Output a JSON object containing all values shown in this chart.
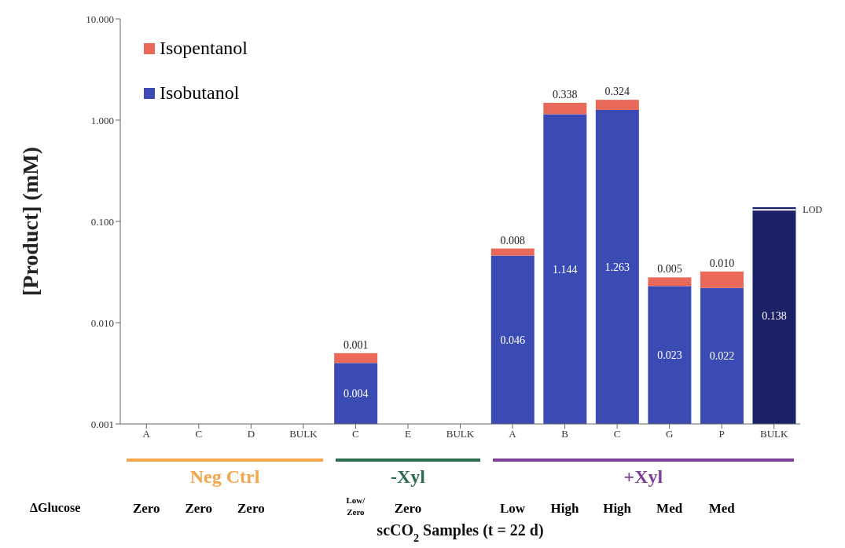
{
  "chart_data": {
    "type": "bar",
    "stacked": true,
    "ylabel": "[Product] (mM)",
    "categories": [
      "A",
      "C",
      "D",
      "BULK",
      "C",
      "E",
      "BULK",
      "A",
      "B",
      "C",
      "G",
      "P",
      "BULK"
    ],
    "series": [
      {
        "name": "Isobutanol",
        "color": "#3a4bb3",
        "colors": [
          null,
          null,
          null,
          null,
          "#3a4bb3",
          null,
          null,
          "#3a4bb3",
          "#3a4bb3",
          "#3a4bb3",
          "#3a4bb3",
          "#3a4bb3",
          "#1b2166"
        ],
        "values": [
          null,
          null,
          null,
          null,
          0.004,
          null,
          null,
          0.046,
          1.144,
          1.263,
          0.023,
          0.022,
          0.138
        ],
        "value_labels": [
          null,
          null,
          null,
          null,
          "0.004",
          null,
          null,
          "0.046",
          "1.144",
          "1.263",
          "0.023",
          "0.022",
          "0.138"
        ]
      },
      {
        "name": "Isopentanol",
        "color": "#e8695a",
        "values": [
          null,
          null,
          null,
          null,
          0.001,
          null,
          null,
          0.008,
          0.338,
          0.324,
          0.005,
          0.01,
          null
        ],
        "value_labels": [
          null,
          null,
          null,
          null,
          "0.001",
          null,
          null,
          "0.008",
          "0.338",
          "0.324",
          "0.005",
          "0.010",
          null
        ]
      }
    ],
    "log": "y",
    "ylim": [
      0.001,
      10
    ],
    "yticks": [
      {
        "value": 0.001,
        "label": "0.001"
      },
      {
        "value": 0.01,
        "label": "0.010"
      },
      {
        "value": 0.1,
        "label": "0.100"
      },
      {
        "value": 1,
        "label": "1.000"
      },
      {
        "value": 10,
        "label": "10.000"
      }
    ],
    "ref_lines": [
      {
        "axis": "y",
        "value": 0.13,
        "label": "LOD",
        "color": "#ffffff"
      }
    ],
    "legend": "top left",
    "grid": false,
    "annotations": [
      "Neg Ctrl",
      "-Xyl",
      "+Xyl",
      "ΔGlucose",
      "Zero",
      "Zero",
      "Zero",
      "Low/ Zero",
      "Zero",
      "Low",
      "High",
      "High",
      "Med",
      "Med",
      "scCO$_{2}$ Samples (t = 22 d)"
    ]
  }
}
